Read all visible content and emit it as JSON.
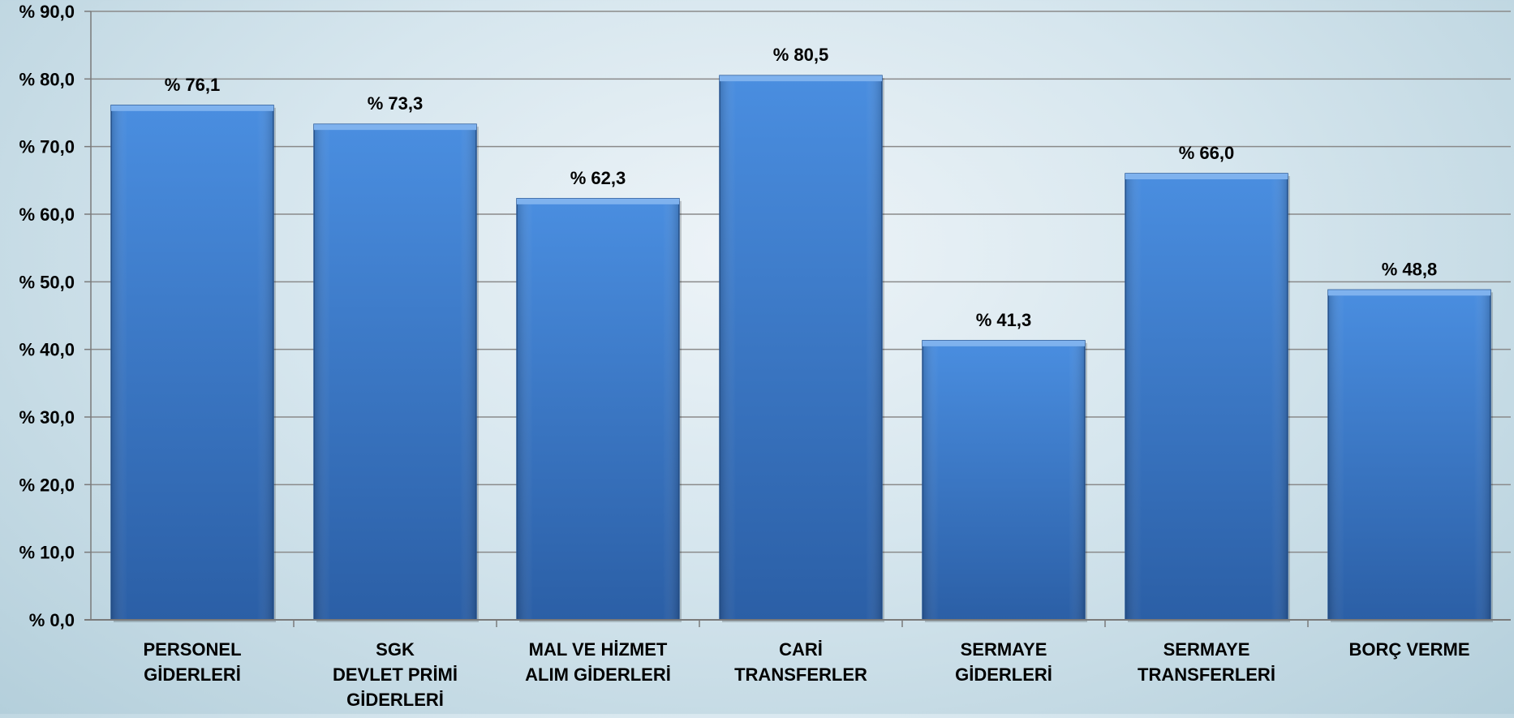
{
  "chart_data": {
    "type": "bar",
    "title": "",
    "xlabel": "",
    "ylabel": "",
    "ylim": [
      0,
      90
    ],
    "y_tick_step": 10,
    "y_tick_labels": [
      "% 0,0",
      "% 10,0",
      "% 20,0",
      "% 30,0",
      "% 40,0",
      "% 50,0",
      "% 60,0",
      "% 70,0",
      "% 80,0",
      "% 90,0"
    ],
    "grid": true,
    "categories": [
      [
        "PERSONEL",
        "GİDERLERİ"
      ],
      [
        "SGK",
        "DEVLET PRİMİ",
        "GİDERLERİ"
      ],
      [
        "MAL VE HİZMET",
        "ALIM GİDERLERİ"
      ],
      [
        "CARİ",
        "TRANSFERLER"
      ],
      [
        "SERMAYE",
        "GİDERLERİ"
      ],
      [
        "SERMAYE",
        "TRANSFERLERİ"
      ],
      [
        "BORÇ VERME"
      ]
    ],
    "values": [
      76.1,
      73.3,
      62.3,
      80.5,
      41.3,
      66.0,
      48.8
    ],
    "data_labels": [
      "% 76,1",
      "% 73,3",
      "% 62,3",
      "% 80,5",
      "% 41,3",
      "% 66,0",
      "% 48,8"
    ],
    "colors": {
      "bar_light": "#4a8ee0",
      "bar_dark": "#2b5fa6",
      "bar_top": "#7fb2ee",
      "grid": "#8a8a8a",
      "axis": "#7a7a7a"
    }
  }
}
